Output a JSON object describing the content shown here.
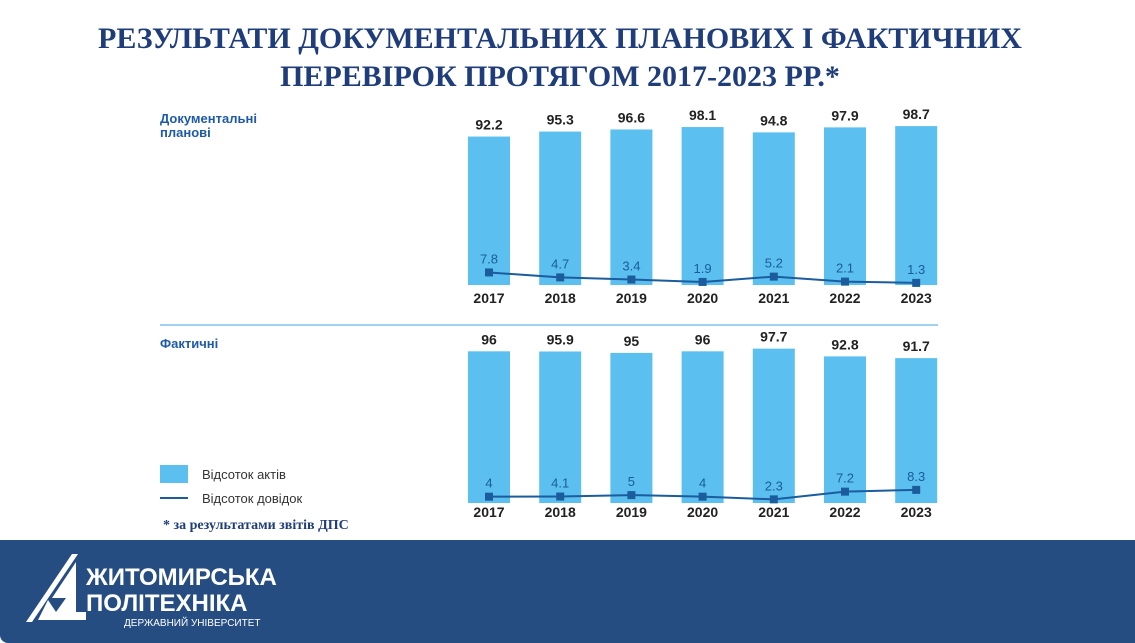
{
  "title_line1": "РЕЗУЛЬТАТИ ДОКУМЕНТАЛЬНИХ ПЛАНОВИХ І ФАКТИЧНИХ",
  "title_line2": "ПЕРЕВІРОК ПРОТЯГОМ 2017-2023 РР.*",
  "colors": {
    "bar": "#5bbfef",
    "line": "#1b5c9e",
    "title": "#1f3d7a",
    "band": "#264d82"
  },
  "chart_data": [
    {
      "type": "bar",
      "title": "Документальні планові",
      "section_line1": "Документальні",
      "section_line2": "планові",
      "categories": [
        "2017",
        "2018",
        "2019",
        "2020",
        "2021",
        "2022",
        "2023"
      ],
      "series": [
        {
          "name": "Відсоток актів",
          "type": "bar",
          "values": [
            92.2,
            95.3,
            96.6,
            98.1,
            94.8,
            97.9,
            98.7
          ]
        },
        {
          "name": "Відсоток довідок",
          "type": "line",
          "values": [
            7.8,
            4.7,
            3.4,
            1.9,
            5.2,
            2.1,
            1.3
          ]
        }
      ]
    },
    {
      "type": "bar",
      "title": "Фактичні",
      "section_line1": "Фактичні",
      "categories": [
        "2017",
        "2018",
        "2019",
        "2020",
        "2021",
        "2022",
        "2023"
      ],
      "series": [
        {
          "name": "Відсоток актів",
          "type": "bar",
          "values": [
            96,
            95.9,
            95,
            96,
            97.7,
            92.8,
            91.7
          ]
        },
        {
          "name": "Відсоток довідок",
          "type": "line",
          "values": [
            4,
            4.1,
            5,
            4,
            2.3,
            7.2,
            8.3
          ]
        }
      ]
    }
  ],
  "legend": {
    "bars": "Відсоток актів",
    "line": "Відсоток довідок"
  },
  "footnote": "* за результатами звітів ДПС",
  "logo": {
    "line1": "ЖИТОМИРСЬКА",
    "line2": "ПОЛІТЕХНІКА",
    "line3": "ДЕРЖАВНИЙ УНІВЕРСИТЕТ"
  }
}
